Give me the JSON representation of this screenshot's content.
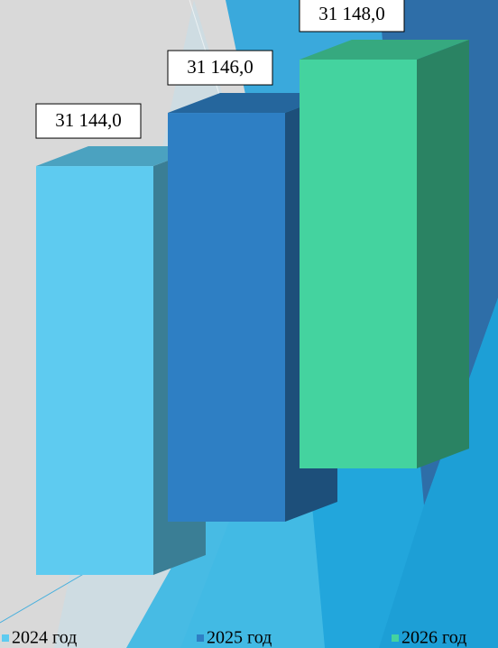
{
  "chart_data": {
    "type": "bar3d",
    "series": [
      {
        "name": "2024 год",
        "color": "#5ecbf0",
        "values": [
          31144
        ],
        "value_labels": [
          "31 144,0"
        ]
      },
      {
        "name": "2025 год",
        "color": "#2e7fc4",
        "values": [
          31146
        ],
        "value_labels": [
          "31 146,0"
        ]
      },
      {
        "name": "2026 год",
        "color": "#44d39f",
        "values": [
          31148
        ],
        "value_labels": [
          "31 148,0"
        ]
      }
    ]
  }
}
